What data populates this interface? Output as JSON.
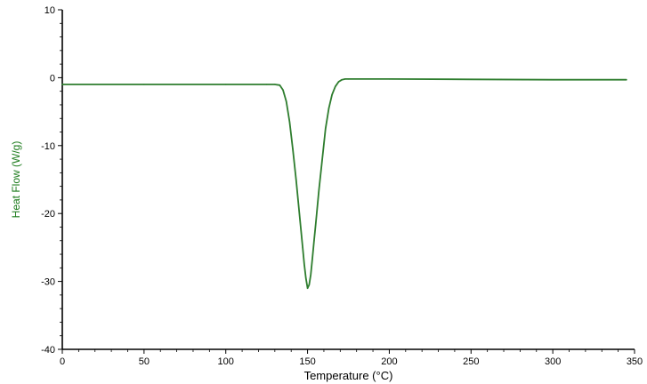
{
  "chart_data": {
    "type": "line",
    "xlabel": "Temperature (°C)",
    "ylabel": "Heat Flow (W/g)",
    "xlim": [
      0,
      350
    ],
    "ylim": [
      -40,
      10
    ],
    "x_ticks": [
      0,
      50,
      100,
      150,
      200,
      250,
      300,
      350
    ],
    "y_ticks": [
      10,
      0,
      -10,
      -20,
      -30,
      -40
    ],
    "grid": false,
    "series_color": "#2e7d2e",
    "series": [
      {
        "x": [
          0,
          50,
          100,
          125,
          130,
          133,
          135,
          137,
          139,
          141,
          143,
          145,
          147,
          148,
          149,
          150,
          151,
          152,
          153,
          154,
          155,
          157,
          159,
          161,
          163,
          165,
          167,
          169,
          171,
          173,
          175,
          200,
          250,
          300,
          345
        ],
        "y": [
          -1.0,
          -1.0,
          -1.0,
          -1.0,
          -1.0,
          -1.1,
          -1.8,
          -3.5,
          -6.5,
          -10.5,
          -15.0,
          -20.0,
          -25.0,
          -27.5,
          -29.5,
          -31.0,
          -30.5,
          -29.0,
          -26.5,
          -24.0,
          -21.5,
          -16.5,
          -12.0,
          -7.5,
          -4.5,
          -2.5,
          -1.3,
          -0.6,
          -0.3,
          -0.2,
          -0.2,
          -0.2,
          -0.25,
          -0.3,
          -0.3
        ]
      }
    ]
  }
}
